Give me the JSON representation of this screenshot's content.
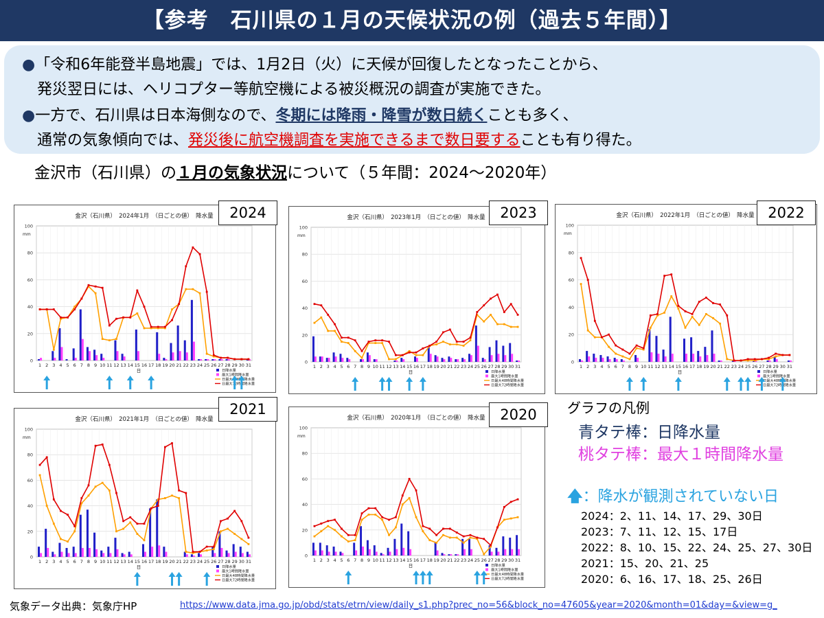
{
  "title": "【参考　石川県の１月の天候状況の例（過去５年間）】",
  "notes": [
    {
      "bullet": "●",
      "parts": [
        {
          "t": "「令和6年能登半島地震」では、1月2日（火）に天候が回復したとなったことから、",
          "s": ""
        }
      ]
    },
    {
      "bullet": "",
      "parts": [
        {
          "t": "発災翌日には、ヘリコプター等航空機による被災概況の調査が実施できた。",
          "s": ""
        }
      ]
    },
    {
      "bullet": "●",
      "parts": [
        {
          "t": "一方で、石川県は日本海側なので、",
          "s": ""
        },
        {
          "t": "冬期には降雨・降雪が数日続く",
          "s": "blue"
        },
        {
          "t": "ことも多く、",
          "s": ""
        }
      ]
    },
    {
      "bullet": "",
      "parts": [
        {
          "t": "通常の気象傾向では、",
          "s": ""
        },
        {
          "t": "発災後に航空機調査を実施できるまで数日要する",
          "s": "red"
        },
        {
          "t": "ことも有り得た。",
          "s": ""
        }
      ]
    }
  ],
  "subtitle": {
    "pre": "金沢市（石川県）の",
    "em": "１月の気象状況",
    "post": "について（５年間：2024～2020年）"
  },
  "legend": {
    "title": "グラフの凡例",
    "blue": "青タテ棒：日降水量",
    "pink": "桃タテ棒：最大１時間降水量",
    "arrow": "：降水が観測されていない日",
    "day_lists": [
      "2024：2、11、14、17、29、30日",
      "2023：7、11、12、15、17日",
      "2022：8、10、15、22、24、25、27、30日",
      "2021：15、20、21、25",
      "2020：6、16、17、18、25、26日"
    ]
  },
  "source_label": "気象データ出典：気象庁HP",
  "source_url": "https://www.data.jma.go.jp/obd/stats/etrn/view/daily_s1.php?prec_no=56&block_no=47605&year=2020&month=01&day=&view=g_",
  "colors": {
    "daily_bar": "#2020c8",
    "hourly_bar": "#ff40ff",
    "line48": "#ffa000",
    "line72": "#e00000",
    "arrow": "#2aa3e0",
    "banner": "#1f3864"
  },
  "chart_data": [
    {
      "type": "bar",
      "year": "2024",
      "title": "金沢（石川県）　2024年1月　（日ごとの値）　降水量",
      "ylabel": "mm",
      "xlabel": "日",
      "ylim": [
        0,
        100
      ],
      "x": [
        1,
        2,
        3,
        4,
        5,
        6,
        7,
        8,
        9,
        10,
        11,
        12,
        13,
        14,
        15,
        16,
        17,
        18,
        19,
        20,
        21,
        22,
        23,
        24,
        25,
        26,
        27,
        28,
        29,
        30,
        31
      ],
      "series": [
        {
          "name": "日降水量",
          "kind": "bar",
          "values": [
            1,
            0,
            7,
            24,
            1,
            9,
            38,
            10,
            8,
            5,
            0,
            15,
            5,
            0,
            23,
            0,
            0,
            21,
            2,
            13,
            26,
            15,
            45,
            1,
            1,
            1,
            1,
            1,
            0,
            0,
            1
          ]
        },
        {
          "name": "最大1時間降水量",
          "kind": "bar",
          "values": [
            2,
            0,
            2,
            10,
            0,
            2,
            16,
            7,
            4,
            2,
            0,
            7,
            3,
            0,
            7,
            0,
            0,
            5,
            1,
            6,
            7,
            6,
            14,
            1,
            1,
            1,
            1,
            1,
            0,
            0,
            1
          ]
        },
        {
          "name": "日最大48時間降水量",
          "kind": "line",
          "values": [
            38,
            38,
            8,
            31,
            32,
            40,
            46,
            55,
            50,
            16,
            15,
            16,
            32,
            32,
            35,
            24,
            24,
            24,
            24,
            38,
            42,
            53,
            53,
            50,
            5,
            3,
            2,
            2,
            1,
            1,
            1
          ]
        },
        {
          "name": "日最大72時間降水量",
          "kind": "line",
          "values": [
            38,
            38,
            38,
            32,
            32,
            38,
            46,
            56,
            55,
            54,
            26,
            31,
            32,
            32,
            52,
            40,
            25,
            25,
            25,
            30,
            42,
            70,
            84,
            79,
            51,
            4,
            2,
            2,
            1,
            1,
            1
          ]
        }
      ],
      "no_precip_days": [
        2,
        11,
        14,
        17,
        29,
        30
      ]
    },
    {
      "type": "bar",
      "year": "2023",
      "title": "金沢（石川県）　2023年1月　（日ごとの値）　降水量",
      "ylabel": "mm",
      "xlabel": "日",
      "ylim": [
        0,
        100
      ],
      "x": [
        1,
        2,
        3,
        4,
        5,
        6,
        7,
        8,
        9,
        10,
        11,
        12,
        13,
        14,
        15,
        16,
        17,
        18,
        19,
        20,
        21,
        22,
        23,
        24,
        25,
        26,
        27,
        28,
        29,
        30,
        31
      ],
      "series": [
        {
          "name": "日降水量",
          "kind": "bar",
          "values": [
            19,
            4,
            3,
            7,
            6,
            3,
            0,
            2,
            7,
            2,
            0,
            0,
            1,
            3,
            0,
            4,
            0,
            11,
            5,
            3,
            4,
            2,
            3,
            6,
            27,
            3,
            11,
            16,
            12,
            14,
            1
          ]
        },
        {
          "name": "最大1時間降水量",
          "kind": "bar",
          "values": [
            4,
            4,
            3,
            4,
            3,
            2,
            0,
            2,
            5,
            2,
            0,
            0,
            1,
            2,
            0,
            3,
            0,
            6,
            4,
            2,
            3,
            2,
            2,
            5,
            12,
            2,
            5,
            6,
            5,
            6,
            1
          ]
        },
        {
          "name": "日最大48時間降水量",
          "kind": "line",
          "values": [
            29,
            33,
            23,
            23,
            15,
            14,
            8,
            3,
            14,
            14,
            14,
            2,
            2,
            5,
            8,
            5,
            5,
            12,
            13,
            15,
            13,
            13,
            12,
            16,
            35,
            30,
            35,
            28,
            28,
            26,
            26
          ]
        },
        {
          "name": "日最大72時間降水量",
          "kind": "line",
          "values": [
            43,
            42,
            35,
            28,
            18,
            18,
            16,
            8,
            15,
            16,
            16,
            15,
            5,
            5,
            7,
            7,
            10,
            12,
            15,
            22,
            24,
            15,
            15,
            18,
            37,
            42,
            47,
            50,
            37,
            43,
            35
          ]
        }
      ],
      "no_precip_days": [
        7,
        11,
        12,
        15,
        17
      ]
    },
    {
      "type": "bar",
      "year": "2022",
      "title": "金沢（石川県）　2022年1月　（日ごとの値）　降水量",
      "ylabel": "mm",
      "xlabel": "日",
      "ylim": [
        0,
        100
      ],
      "x": [
        1,
        2,
        3,
        4,
        5,
        6,
        7,
        8,
        9,
        10,
        11,
        12,
        13,
        14,
        15,
        16,
        17,
        18,
        19,
        20,
        21,
        22,
        23,
        24,
        25,
        26,
        27,
        28,
        29,
        30,
        31
      ],
      "series": [
        {
          "name": "日降水量",
          "kind": "bar",
          "values": [
            2,
            8,
            6,
            5,
            4,
            3,
            2,
            0,
            5,
            0,
            24,
            19,
            9,
            33,
            0,
            17,
            18,
            8,
            11,
            23,
            1,
            0,
            1,
            0,
            0,
            1,
            0,
            1,
            4,
            0,
            1
          ]
        },
        {
          "name": "最大1時間降水量",
          "kind": "bar",
          "values": [
            1,
            4,
            3,
            3,
            2,
            2,
            1,
            0,
            3,
            0,
            7,
            6,
            4,
            6,
            0,
            6,
            6,
            4,
            5,
            6,
            1,
            0,
            1,
            0,
            0,
            1,
            0,
            1,
            2,
            0,
            1
          ]
        },
        {
          "name": "日最大48時間降水量",
          "kind": "line",
          "values": [
            57,
            23,
            18,
            18,
            11,
            6,
            4,
            2,
            10,
            9,
            25,
            34,
            36,
            48,
            39,
            25,
            33,
            27,
            35,
            32,
            28,
            2,
            1,
            1,
            1,
            1,
            2,
            2,
            4,
            5,
            5
          ]
        },
        {
          "name": "日最大72時間降水量",
          "kind": "line",
          "values": [
            76,
            60,
            30,
            18,
            20,
            12,
            9,
            6,
            12,
            10,
            34,
            35,
            63,
            64,
            41,
            37,
            35,
            44,
            47,
            43,
            42,
            34,
            1,
            1,
            2,
            2,
            2,
            3,
            6,
            5,
            5
          ]
        }
      ],
      "no_precip_days": [
        8,
        10,
        15,
        22,
        24,
        25,
        27,
        30
      ]
    },
    {
      "type": "bar",
      "year": "2021",
      "title": "金沢（石川県）　2021年1月　（日ごとの値）　降水量",
      "ylabel": "mm",
      "xlabel": "日",
      "ylim": [
        0,
        100
      ],
      "x": [
        1,
        2,
        3,
        4,
        5,
        6,
        7,
        8,
        9,
        10,
        11,
        12,
        13,
        14,
        15,
        16,
        17,
        18,
        19,
        20,
        21,
        22,
        23,
        24,
        25,
        26,
        27,
        28,
        29,
        30,
        31
      ],
      "series": [
        {
          "name": "日降水量",
          "kind": "bar",
          "values": [
            8,
            22,
            4,
            11,
            7,
            8,
            33,
            37,
            19,
            5,
            8,
            15,
            3,
            4,
            0,
            10,
            38,
            45,
            8,
            0,
            0,
            4,
            2,
            3,
            0,
            8,
            20,
            5,
            10,
            8,
            4
          ]
        },
        {
          "name": "最大1時間降水量",
          "kind": "bar",
          "values": [
            3,
            7,
            2,
            4,
            3,
            3,
            7,
            7,
            6,
            3,
            3,
            6,
            2,
            2,
            0,
            4,
            8,
            9,
            4,
            0,
            0,
            2,
            1,
            2,
            0,
            3,
            7,
            3,
            4,
            3,
            2
          ]
        },
        {
          "name": "日最大48時間降水量",
          "kind": "line",
          "values": [
            64,
            40,
            26,
            14,
            12,
            20,
            42,
            48,
            55,
            58,
            52,
            20,
            22,
            27,
            18,
            13,
            38,
            45,
            46,
            48,
            46,
            4,
            3,
            4,
            5,
            6,
            20,
            22,
            18,
            14,
            10
          ]
        },
        {
          "name": "日最大72時間降水量",
          "kind": "line",
          "values": [
            72,
            78,
            45,
            36,
            33,
            24,
            46,
            56,
            87,
            88,
            72,
            50,
            28,
            31,
            26,
            26,
            38,
            40,
            86,
            89,
            52,
            50,
            4,
            4,
            8,
            8,
            28,
            30,
            36,
            28,
            15
          ]
        }
      ],
      "no_precip_days": [
        15,
        20,
        21,
        25
      ]
    },
    {
      "type": "bar",
      "year": "2020",
      "title": "金沢（石川県）　2020年1月　（日ごとの値）　降水量",
      "ylabel": "mm",
      "xlabel": "日",
      "ylim": [
        0,
        100
      ],
      "x": [
        1,
        2,
        3,
        4,
        5,
        6,
        7,
        8,
        9,
        10,
        11,
        12,
        13,
        14,
        15,
        16,
        17,
        18,
        19,
        20,
        21,
        22,
        23,
        24,
        25,
        26,
        27,
        28,
        29,
        30,
        31
      ],
      "series": [
        {
          "name": "日降水量",
          "kind": "bar",
          "values": [
            10,
            10,
            8,
            7,
            3,
            0,
            10,
            23,
            12,
            8,
            2,
            6,
            13,
            25,
            19,
            0,
            0,
            0,
            10,
            2,
            1,
            1,
            13,
            13,
            0,
            0,
            8,
            6,
            15,
            14,
            16
          ]
        },
        {
          "name": "最大1時間降水量",
          "kind": "bar",
          "values": [
            4,
            4,
            3,
            3,
            2,
            0,
            4,
            7,
            5,
            3,
            1,
            3,
            5,
            6,
            5,
            0,
            0,
            0,
            4,
            1,
            1,
            1,
            5,
            5,
            0,
            0,
            3,
            3,
            5,
            5,
            5
          ]
        },
        {
          "name": "日最大48時間降水量",
          "kind": "line",
          "values": [
            15,
            19,
            23,
            20,
            15,
            11,
            12,
            28,
            32,
            32,
            28,
            16,
            22,
            40,
            45,
            30,
            19,
            12,
            10,
            16,
            14,
            14,
            10,
            14,
            13,
            1,
            7,
            22,
            28,
            29,
            30
          ]
        },
        {
          "name": "日最大72時間降水量",
          "kind": "line",
          "values": [
            23,
            25,
            27,
            28,
            21,
            16,
            16,
            33,
            37,
            37,
            30,
            28,
            30,
            47,
            60,
            51,
            23,
            21,
            16,
            21,
            21,
            18,
            15,
            16,
            14,
            13,
            8,
            22,
            38,
            42,
            44
          ]
        }
      ],
      "no_precip_days": [
        6,
        16,
        17,
        18,
        25,
        26
      ]
    }
  ]
}
